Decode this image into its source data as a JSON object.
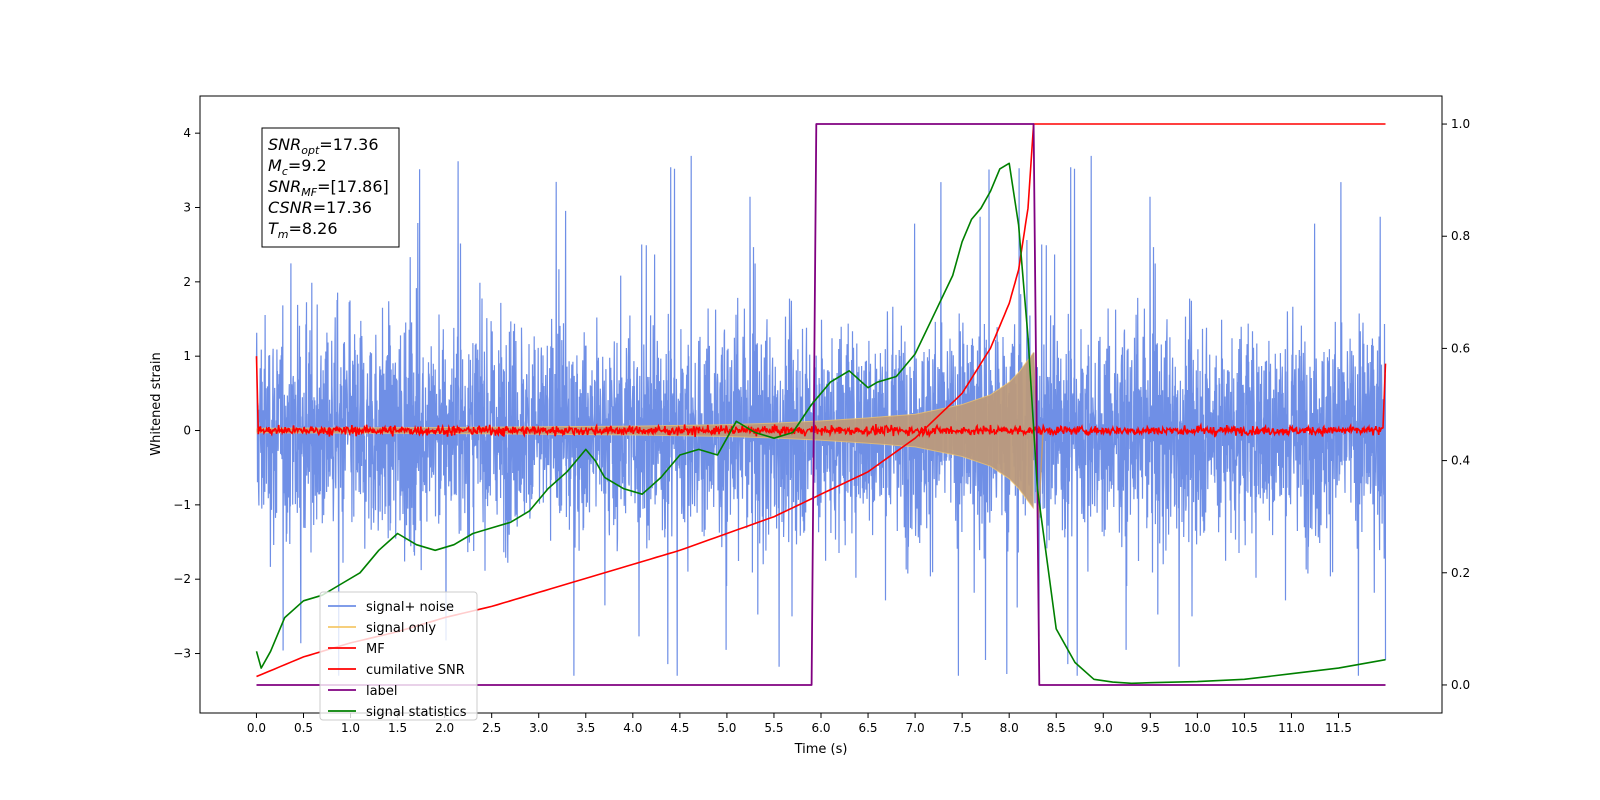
{
  "chart_data": {
    "type": "line",
    "xlabel": "Time (s)",
    "ylabel": "Whitened strain",
    "xlim": [
      -0.6,
      12.6
    ],
    "ylim": [
      -3.8,
      4.5
    ],
    "y2lim": [
      -0.05,
      1.05
    ],
    "x_ticks": [
      0.0,
      0.5,
      1.0,
      1.5,
      2.0,
      2.5,
      3.0,
      3.5,
      4.0,
      4.5,
      5.0,
      5.5,
      6.0,
      6.5,
      7.0,
      7.5,
      8.0,
      8.5,
      9.0,
      9.5,
      10.0,
      10.5,
      11.0,
      11.5
    ],
    "x_tick_labels": [
      "0.0",
      "0.5",
      "1.0",
      "1.5",
      "2.0",
      "2.5",
      "3.0",
      "3.5",
      "4.0",
      "4.5",
      "5.0",
      "5.5",
      "6.0",
      "6.5",
      "7.0",
      "7.5",
      "8.0",
      "8.5",
      "9.0",
      "9.5",
      "10.0",
      "10.5",
      "11.0",
      "11.5"
    ],
    "y_ticks": [
      -3,
      -2,
      -1,
      0,
      1,
      2,
      3,
      4
    ],
    "y_tick_labels": [
      "−3",
      "−2",
      "−1",
      "0",
      "1",
      "2",
      "3",
      "4"
    ],
    "y2_ticks": [
      0.0,
      0.2,
      0.4,
      0.6,
      0.8,
      1.0
    ],
    "y2_tick_labels": [
      "0.0",
      "0.2",
      "0.4",
      "0.6",
      "0.8",
      "1.0"
    ],
    "grid": false,
    "legend_position": "lower-left",
    "colors": {
      "signal_noise": "#6f8fe6",
      "signal_only": "#f5c86a",
      "overlap": "#bc9a7b",
      "mf": "#ff0000",
      "cumulative_snr": "#ff0000",
      "label": "#800080",
      "signal_statistics": "#008000"
    },
    "series": [
      {
        "name": "signal+ noise",
        "axis": "left",
        "description": "white noise, roughly uniform amplitude over 0.0–12.0 s",
        "x_range": [
          0.0,
          12.0
        ],
        "typical_range": [
          -1.8,
          1.8
        ],
        "extremes": [
          -3.3,
          4.0
        ]
      },
      {
        "name": "signal only",
        "axis": "left",
        "description": "chirp envelope growing toward merger",
        "envelope_x": [
          0.0,
          1.0,
          2.0,
          3.0,
          4.0,
          5.0,
          5.5,
          6.0,
          6.5,
          7.0,
          7.5,
          7.8,
          8.0,
          8.1,
          8.2,
          8.26
        ],
        "envelope_y": [
          0.03,
          0.035,
          0.04,
          0.05,
          0.06,
          0.08,
          0.1,
          0.13,
          0.17,
          0.22,
          0.35,
          0.48,
          0.65,
          0.78,
          0.95,
          1.05
        ]
      },
      {
        "name": "MF",
        "axis": "left",
        "description": "matched-filter output, small noise around 0 with edge spikes",
        "x_range": [
          0.0,
          12.0
        ],
        "start_value": 1.0,
        "end_value": 0.9,
        "noise_amplitude": 0.08
      },
      {
        "name": "cumilative SNR",
        "axis": "right",
        "x": [
          0.0,
          0.5,
          1.0,
          1.5,
          2.0,
          2.5,
          3.0,
          3.5,
          4.0,
          4.5,
          5.0,
          5.5,
          6.0,
          6.5,
          7.0,
          7.5,
          7.8,
          8.0,
          8.1,
          8.2,
          8.26,
          12.0
        ],
        "values": [
          0.015,
          0.05,
          0.075,
          0.095,
          0.12,
          0.14,
          0.165,
          0.19,
          0.215,
          0.24,
          0.27,
          0.3,
          0.34,
          0.38,
          0.44,
          0.52,
          0.6,
          0.68,
          0.74,
          0.85,
          1.0,
          1.0
        ]
      },
      {
        "name": "label",
        "axis": "right",
        "x": [
          0.0,
          5.9,
          5.95,
          8.26,
          8.32,
          12.0
        ],
        "values": [
          0.0,
          0.0,
          1.0,
          1.0,
          0.0,
          0.0
        ]
      },
      {
        "name": "signal statistics",
        "axis": "right",
        "x": [
          0.0,
          0.05,
          0.15,
          0.3,
          0.5,
          0.7,
          0.9,
          1.1,
          1.3,
          1.5,
          1.7,
          1.9,
          2.1,
          2.3,
          2.5,
          2.7,
          2.9,
          3.1,
          3.3,
          3.5,
          3.6,
          3.7,
          3.9,
          4.1,
          4.3,
          4.5,
          4.7,
          4.9,
          5.1,
          5.3,
          5.5,
          5.7,
          5.9,
          6.0,
          6.1,
          6.3,
          6.5,
          6.6,
          6.8,
          7.0,
          7.2,
          7.4,
          7.5,
          7.6,
          7.7,
          7.8,
          7.9,
          8.0,
          8.1,
          8.2,
          8.3,
          8.5,
          8.7,
          8.9,
          9.1,
          9.3,
          9.5,
          10.0,
          10.5,
          11.0,
          11.5,
          12.0
        ],
        "values": [
          0.06,
          0.03,
          0.06,
          0.12,
          0.15,
          0.16,
          0.18,
          0.2,
          0.24,
          0.27,
          0.25,
          0.24,
          0.25,
          0.27,
          0.28,
          0.29,
          0.31,
          0.35,
          0.38,
          0.42,
          0.4,
          0.37,
          0.35,
          0.34,
          0.37,
          0.41,
          0.42,
          0.41,
          0.47,
          0.45,
          0.44,
          0.45,
          0.5,
          0.52,
          0.54,
          0.56,
          0.53,
          0.54,
          0.55,
          0.59,
          0.66,
          0.73,
          0.79,
          0.83,
          0.85,
          0.88,
          0.92,
          0.93,
          0.82,
          0.62,
          0.35,
          0.1,
          0.04,
          0.01,
          0.005,
          0.003,
          0.004,
          0.006,
          0.01,
          0.02,
          0.03,
          0.045
        ]
      }
    ],
    "legend": [
      "signal+ noise",
      "signal only",
      "MF",
      "cumilative SNR",
      "label",
      "signal statistics"
    ],
    "annotation": [
      {
        "main": "SNR",
        "sub": "opt",
        "value": "=17.36"
      },
      {
        "main": "M",
        "sub": "c",
        "value": "=9.2"
      },
      {
        "main": "SNR",
        "sub": "MF",
        "value": "=[17.86]"
      },
      {
        "main": "CSNR",
        "sub": "",
        "value": "=17.36"
      },
      {
        "main": "T",
        "sub": "m",
        "value": "=8.26"
      }
    ]
  }
}
